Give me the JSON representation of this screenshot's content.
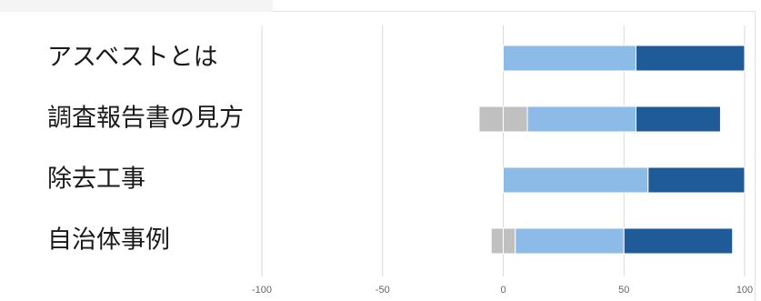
{
  "chart_data": {
    "type": "bar",
    "orientation": "horizontal",
    "stacked": true,
    "categories": [
      "アスベストとは",
      "調査報告書の見方",
      "除去工事",
      "自治体事例"
    ],
    "series": [
      {
        "color": "#c0c0c0",
        "ranges": [
          [
            0,
            0
          ],
          [
            -10,
            0
          ],
          [
            0,
            0
          ],
          [
            -5,
            0
          ]
        ]
      },
      {
        "color": "#c0c0c0",
        "ranges": [
          [
            0,
            0
          ],
          [
            0,
            10
          ],
          [
            0,
            0
          ],
          [
            0,
            5
          ]
        ]
      },
      {
        "color": "#8bbbe6",
        "ranges": [
          [
            0,
            55
          ],
          [
            10,
            55
          ],
          [
            0,
            60
          ],
          [
            5,
            50
          ]
        ]
      },
      {
        "color": "#1f5b98",
        "ranges": [
          [
            55,
            100
          ],
          [
            55,
            90
          ],
          [
            60,
            100
          ],
          [
            50,
            95
          ]
        ]
      }
    ],
    "xlim": [
      -100,
      100
    ],
    "xticks": [
      "-100",
      "-50",
      "0",
      "50",
      "100"
    ],
    "xtick_values": [
      -100,
      -50,
      0,
      50,
      100
    ],
    "grid": true,
    "legend": "none",
    "title": "",
    "xlabel": "",
    "ylabel": ""
  }
}
